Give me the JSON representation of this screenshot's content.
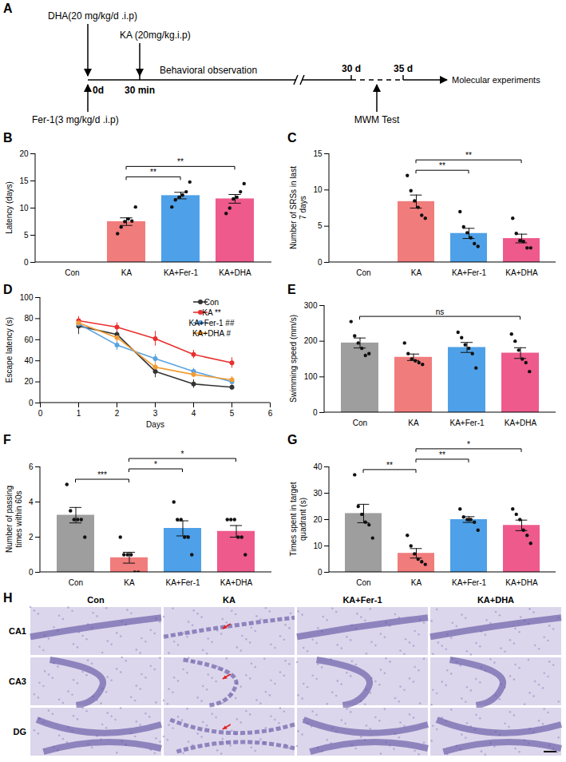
{
  "timeline": {
    "panel": "A",
    "top_left": "DHA(20 mg/kg/d .i.p)",
    "top_right": "KA (20mg/kg.i.p)",
    "bottom_left": "Fer-1(3 mg/kg/d .i.p)",
    "start": "0d",
    "injection": "30 min",
    "phase": "Behavioral observation",
    "mark1": "30 d",
    "mark2": "35 d",
    "test": "MWM Test",
    "end": "Molecular experiments"
  },
  "chart_data": [
    {
      "panel": "B",
      "type": "bar",
      "y_label": "Latency (days)",
      "categories": [
        "Con",
        "KA",
        "KA+Fer-1",
        "KA+DHA"
      ],
      "values": [
        0,
        7.5,
        12.3,
        11.7
      ],
      "errors": [
        0,
        0.7,
        0.6,
        0.8
      ],
      "points": [
        [],
        [
          5.3,
          6.5,
          7.5,
          8,
          7.6,
          10.2
        ],
        [
          10.2,
          11.5,
          12,
          12.4,
          13,
          14.8
        ],
        [
          9,
          10,
          11.7,
          12,
          13,
          14.5
        ]
      ],
      "colors": [
        "#9e9e9e",
        "#f17c7c",
        "#4ea1e8",
        "#ee5a8c"
      ],
      "ylim": [
        0,
        20
      ],
      "yticks": [
        0,
        5,
        10,
        15,
        20
      ],
      "significance": [
        {
          "from": "KA",
          "to": "KA+Fer-1",
          "label": "**"
        },
        {
          "from": "KA",
          "to": "KA+DHA",
          "label": "**"
        }
      ]
    },
    {
      "panel": "C",
      "type": "bar",
      "y_label": "Number of SRSs in last 7 days",
      "categories": [
        "Con",
        "KA",
        "KA+Fer-1",
        "KA+DHA"
      ],
      "values": [
        0,
        8.4,
        4.0,
        3.3
      ],
      "errors": [
        0,
        0.9,
        0.7,
        0.6
      ],
      "points": [
        [],
        [
          12,
          9.9,
          8.5,
          7.6,
          6.5,
          6.1
        ],
        [
          7,
          4.9,
          4.1,
          3.4,
          2.6,
          2.2
        ],
        [
          6.1,
          4,
          3,
          2.9,
          2,
          2
        ]
      ],
      "colors": [
        "#9e9e9e",
        "#f17c7c",
        "#4ea1e8",
        "#ee5a8c"
      ],
      "ylim": [
        0,
        15
      ],
      "yticks": [
        0,
        5,
        10,
        15
      ],
      "significance": [
        {
          "from": "KA",
          "to": "KA+Fer-1",
          "label": "**"
        },
        {
          "from": "KA",
          "to": "KA+DHA",
          "label": "**"
        }
      ]
    },
    {
      "panel": "D",
      "type": "line",
      "y_label": "Escape latency (s)",
      "x_label": "Days",
      "x": [
        1,
        2,
        3,
        4,
        5
      ],
      "series": [
        {
          "name": "Con",
          "significance": "",
          "color": "#333333",
          "marker": "circle",
          "values": [
            73,
            65,
            30,
            18,
            15
          ],
          "errors": [
            8,
            5,
            6,
            4,
            3
          ]
        },
        {
          "name": "KA",
          "significance": "**",
          "color": "#e8302f",
          "marker": "circle",
          "values": [
            78,
            72,
            61,
            46,
            38
          ],
          "errors": [
            4,
            4,
            7,
            4,
            5
          ]
        },
        {
          "name": "KA+Fer-1",
          "significance": "##",
          "color": "#5ba3e0",
          "marker": "circle",
          "values": [
            75,
            55,
            42,
            30,
            20
          ],
          "errors": [
            4,
            5,
            4,
            3,
            3
          ]
        },
        {
          "name": "KA+DHA",
          "significance": "#",
          "color": "#f39c34",
          "marker": "circle",
          "values": [
            76,
            62,
            34,
            27,
            22
          ],
          "errors": [
            3,
            4,
            4,
            3,
            3
          ]
        }
      ],
      "xlim": [
        0,
        6
      ],
      "xticks": [
        0,
        1,
        2,
        3,
        4,
        5,
        6
      ],
      "ylim": [
        0,
        100
      ],
      "yticks": [
        0,
        20,
        40,
        60,
        80,
        100
      ],
      "legend": "top-right"
    },
    {
      "panel": "E",
      "type": "bar",
      "y_label": "Swimming speed (mm/s)",
      "categories": [
        "Con",
        "KA",
        "KA+Fer-1",
        "KA+DHA"
      ],
      "values": [
        195,
        155,
        182.5,
        166.7
      ],
      "errors": [
        14,
        9,
        14,
        15
      ],
      "points": [
        [
          255,
          215,
          195,
          180,
          160,
          165
        ],
        [
          195,
          165,
          150,
          145,
          140,
          135
        ],
        [
          225,
          210,
          190,
          180,
          165,
          125
        ],
        [
          220,
          200,
          175,
          150,
          140,
          115
        ]
      ],
      "colors": [
        "#9e9e9e",
        "#f17c7c",
        "#4ea1e8",
        "#ee5a8c"
      ],
      "ylim": [
        0,
        300
      ],
      "yticks": [
        0,
        100,
        200,
        300
      ],
      "significance": [
        {
          "from": "Con",
          "to": "KA+DHA",
          "label": "ns"
        }
      ]
    },
    {
      "panel": "F",
      "type": "bar",
      "y_label": "Number of passing times within 60s",
      "categories": [
        "Con",
        "KA",
        "KA+Fer-1",
        "KA+DHA"
      ],
      "values": [
        3.25,
        0.83,
        2.5,
        2.33
      ],
      "errors": [
        0.44,
        0.31,
        0.43,
        0.33
      ],
      "points": [
        [
          5,
          3.5,
          3,
          3,
          3,
          2
        ],
        [
          2,
          1,
          1,
          1,
          0,
          0
        ],
        [
          4,
          3,
          3,
          2,
          2,
          1
        ],
        [
          3,
          3,
          3,
          2,
          2,
          1
        ]
      ],
      "colors": [
        "#9e9e9e",
        "#f17c7c",
        "#4ea1e8",
        "#ee5a8c"
      ],
      "ylim": [
        0,
        6
      ],
      "yticks": [
        0,
        2,
        4,
        6
      ],
      "significance": [
        {
          "from": "Con",
          "to": "KA",
          "label": "***"
        },
        {
          "from": "KA",
          "to": "KA+Fer-1",
          "label": "*"
        },
        {
          "from": "KA",
          "to": "KA+DHA",
          "label": "*"
        }
      ]
    },
    {
      "panel": "G",
      "type": "bar",
      "y_label": "Times spent in target quadrant (s)",
      "categories": [
        "Con",
        "KA",
        "KA+Fer-1",
        "KA+DHA"
      ],
      "values": [
        22.3,
        7.2,
        20,
        17.8
      ],
      "errors": [
        3.5,
        1.8,
        1.1,
        2.0
      ],
      "points": [
        [
          37,
          25,
          22,
          19,
          18,
          13
        ],
        [
          14,
          10,
          7,
          5,
          4,
          3
        ],
        [
          24,
          21,
          20,
          20,
          19,
          16
        ],
        [
          24,
          22,
          20,
          16,
          14,
          11
        ]
      ],
      "colors": [
        "#9e9e9e",
        "#f17c7c",
        "#4ea1e8",
        "#ee5a8c"
      ],
      "ylim": [
        0,
        40
      ],
      "yticks": [
        0,
        10,
        20,
        30,
        40
      ],
      "significance": [
        {
          "from": "Con",
          "to": "KA",
          "label": "**"
        },
        {
          "from": "KA",
          "to": "KA+Fer-1",
          "label": "**"
        },
        {
          "from": "KA",
          "to": "KA+DHA",
          "label": "*"
        }
      ]
    }
  ],
  "histology": {
    "panel": "H",
    "columns": [
      "Con",
      "KA",
      "KA+Fer-1",
      "KA+DHA"
    ],
    "rows": [
      "CA1",
      "CA3",
      "DG"
    ]
  }
}
